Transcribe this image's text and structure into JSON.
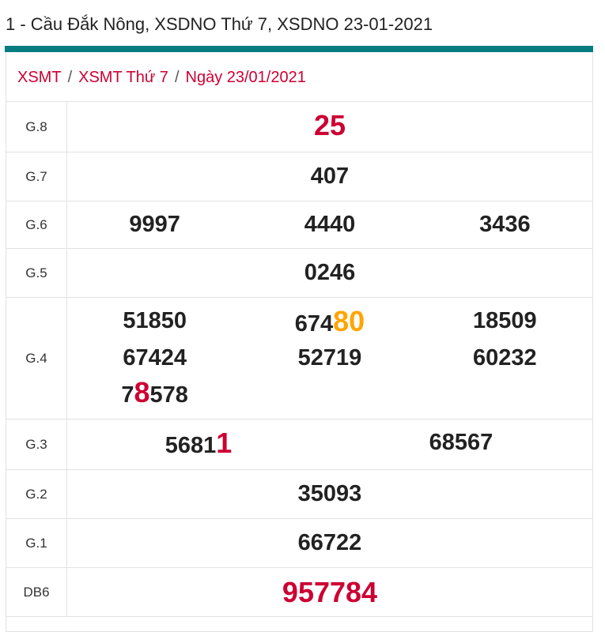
{
  "title": "1 - Cầu Đắk Nông, XSDNO Thứ 7, XSDNO 23-01-2021",
  "breadcrumb": [
    "XSMT",
    "XSMT Thứ 7",
    "Ngày 23/01/2021"
  ],
  "breadcrumb_separator": "/",
  "colors": {
    "accent": "#077d80",
    "red": "#cc0033",
    "orange": "#ffa500"
  },
  "prizes": [
    {
      "label": "G.8",
      "cols": 1,
      "numbers": [
        [
          {
            "t": "25",
            "c": "red"
          }
        ]
      ]
    },
    {
      "label": "G.7",
      "cols": 1,
      "numbers": [
        [
          {
            "t": "407"
          }
        ]
      ]
    },
    {
      "label": "G.6",
      "cols": 3,
      "numbers": [
        [
          {
            "t": "9997"
          }
        ],
        [
          {
            "t": "4440"
          }
        ],
        [
          {
            "t": "3436"
          }
        ]
      ]
    },
    {
      "label": "G.5",
      "cols": 1,
      "numbers": [
        [
          {
            "t": "0246"
          }
        ]
      ]
    },
    {
      "label": "G.4",
      "cols": 3,
      "numbers": [
        [
          {
            "t": "51850"
          }
        ],
        [
          {
            "t": "674"
          },
          {
            "t": "80",
            "c": "orange",
            "hl": true
          }
        ],
        [
          {
            "t": "18509"
          }
        ],
        [
          {
            "t": "67424"
          }
        ],
        [
          {
            "t": "52719"
          }
        ],
        [
          {
            "t": "60232"
          }
        ],
        [
          {
            "t": "7"
          },
          {
            "t": "8",
            "c": "red",
            "hl": true
          },
          {
            "t": "578"
          }
        ]
      ]
    },
    {
      "label": "G.3",
      "cols": 2,
      "numbers": [
        [
          {
            "t": "5681"
          },
          {
            "t": "1",
            "c": "red",
            "hl": true
          }
        ],
        [
          {
            "t": "68567"
          }
        ]
      ]
    },
    {
      "label": "G.2",
      "cols": 1,
      "numbers": [
        [
          {
            "t": "35093"
          }
        ]
      ]
    },
    {
      "label": "G.1",
      "cols": 1,
      "numbers": [
        [
          {
            "t": "66722"
          }
        ]
      ]
    },
    {
      "label": "DB6",
      "cols": 1,
      "special": true,
      "numbers": [
        [
          {
            "t": "957784",
            "c": "red"
          }
        ]
      ]
    }
  ]
}
